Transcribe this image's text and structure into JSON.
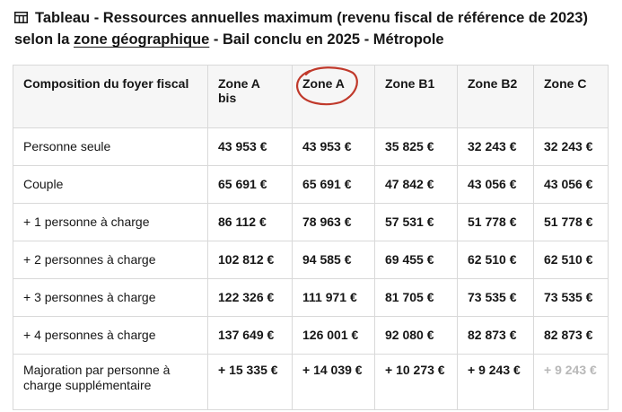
{
  "caption": {
    "icon": "table-icon",
    "prefix": "Tableau - Ressources annuelles maximum (revenu fiscal de référence de 2023) selon la ",
    "link_text": "zone géographique",
    "suffix": " - Bail conclu en 2025 - Métropole"
  },
  "table": {
    "headers": [
      "Composition du foyer fiscal",
      "Zone A bis",
      "Zone A",
      "Zone B1",
      "Zone B2",
      "Zone C"
    ],
    "rows": [
      [
        "Personne seule",
        "43 953 €",
        "43 953 €",
        "35 825 €",
        "32 243 €",
        "32 243 €"
      ],
      [
        "Couple",
        "65 691 €",
        "65 691 €",
        "47 842 €",
        "43 056 €",
        "43 056 €"
      ],
      [
        "+ 1 personne à charge",
        "86 112 €",
        "78 963 €",
        "57 531 €",
        "51 778 €",
        "51 778 €"
      ],
      [
        "+ 2 personnes à charge",
        "102 812 €",
        "94 585 €",
        "69 455 €",
        "62 510 €",
        "62 510 €"
      ],
      [
        "+ 3 personnes à charge",
        "122 326 €",
        "111 971 €",
        "81 705 €",
        "73 535 €",
        "73 535 €"
      ],
      [
        "+ 4 personnes à charge",
        "137 649 €",
        "126 001 €",
        "92 080 €",
        "82 873 €",
        "82 873 €"
      ],
      [
        "Majoration par personne à charge supplémentaire",
        "+ 15 335 €",
        "+ 14 039 €",
        "+ 10 273 €",
        "+ 9 243 €",
        "+ 9 243 €"
      ]
    ]
  },
  "annotation": {
    "color": "#c0392b",
    "circled_header": "Zone A"
  }
}
